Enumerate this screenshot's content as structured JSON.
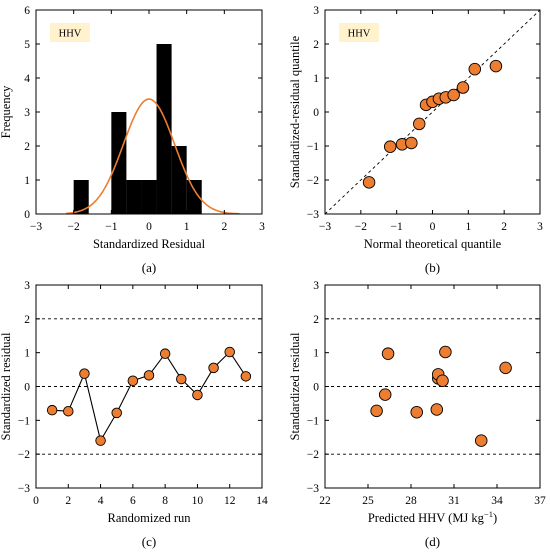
{
  "colors": {
    "marker_fill": "#ED7D31",
    "curve": "#ED7D31",
    "bar": "#000000",
    "badge_bg": "#FFF2CC",
    "axis": "#000000",
    "reference_line": "#000000"
  },
  "chart_data": [
    {
      "id": "a",
      "type": "bar",
      "panel_label": "(a)",
      "badge": "HHV",
      "xlabel": "Standardized Residual",
      "ylabel": "Frequency",
      "xlim": [
        -3,
        3
      ],
      "ylim": [
        0,
        6
      ],
      "xticks": [
        -3,
        -2,
        -1,
        0,
        1,
        2,
        3
      ],
      "yticks": [
        0,
        1,
        2,
        3,
        4,
        5,
        6
      ],
      "bin_width": 0.4,
      "bins": [
        {
          "center": -1.8,
          "value": 1
        },
        {
          "center": -0.8,
          "value": 3
        },
        {
          "center": -0.4,
          "value": 1
        },
        {
          "center": 0.0,
          "value": 1
        },
        {
          "center": 0.4,
          "value": 5
        },
        {
          "center": 0.8,
          "value": 2
        },
        {
          "center": 1.2,
          "value": 1
        }
      ],
      "overlay_curve": {
        "kind": "normal-density-scaled",
        "mean": 0.0,
        "sd": 0.68,
        "peak": 3.38,
        "range": [
          -2.2,
          2.4
        ]
      },
      "grid": false
    },
    {
      "id": "b",
      "type": "scatter",
      "panel_label": "(b)",
      "badge": "HHV",
      "xlabel": "Normal theoretical quantile",
      "ylabel": "Standardized-residual quantile",
      "xlim": [
        -3,
        3
      ],
      "ylim": [
        -3,
        3
      ],
      "xticks": [
        -3,
        -2,
        -1,
        0,
        1,
        2,
        3
      ],
      "yticks": [
        -3,
        -2,
        -1,
        0,
        1,
        2,
        3
      ],
      "points": [
        {
          "x": -1.77,
          "y": -2.07
        },
        {
          "x": -1.18,
          "y": -1.02
        },
        {
          "x": -0.85,
          "y": -0.95
        },
        {
          "x": -0.59,
          "y": -0.91
        },
        {
          "x": -0.37,
          "y": -0.35
        },
        {
          "x": -0.18,
          "y": 0.21
        },
        {
          "x": 0.0,
          "y": 0.3
        },
        {
          "x": 0.18,
          "y": 0.39
        },
        {
          "x": 0.37,
          "y": 0.43
        },
        {
          "x": 0.59,
          "y": 0.5
        },
        {
          "x": 0.85,
          "y": 0.72
        },
        {
          "x": 1.18,
          "y": 1.26
        },
        {
          "x": 1.77,
          "y": 1.35
        }
      ],
      "reference_line": {
        "style": "dashed",
        "from": [
          -3,
          -3
        ],
        "to": [
          3,
          3
        ]
      },
      "grid": false
    },
    {
      "id": "c",
      "type": "line",
      "panel_label": "(c)",
      "xlabel": "Randomized run",
      "ylabel": "Standardized residual",
      "xlim": [
        0,
        14
      ],
      "ylim": [
        -3,
        3
      ],
      "xticks": [
        0,
        2,
        4,
        6,
        8,
        10,
        12,
        14
      ],
      "yticks": [
        -3,
        -2,
        -1,
        0,
        1,
        2,
        3
      ],
      "x": [
        1,
        2,
        3,
        4,
        5,
        6,
        7,
        8,
        9,
        10,
        11,
        12,
        13
      ],
      "y": [
        -0.7,
        -0.73,
        0.38,
        -1.6,
        -0.78,
        0.17,
        0.33,
        0.97,
        0.22,
        -0.25,
        0.55,
        1.02,
        0.3
      ],
      "reference_lines_y": [
        -2,
        0,
        2
      ],
      "grid": false
    },
    {
      "id": "d",
      "type": "scatter",
      "panel_label": "(d)",
      "xlabel": "Predicted HHV (MJ kg",
      "xlabel_superscript": "−1",
      "xlabel_suffix": ")",
      "ylabel": "Standardized residual",
      "xlim": [
        22,
        37
      ],
      "ylim": [
        -3,
        3
      ],
      "xticks": [
        22,
        25,
        28,
        31,
        34,
        37
      ],
      "yticks": [
        -3,
        -2,
        -1,
        0,
        1,
        2,
        3
      ],
      "points": [
        {
          "x": 25.6,
          "y": -0.72
        },
        {
          "x": 26.2,
          "y": -0.24
        },
        {
          "x": 26.4,
          "y": 0.97
        },
        {
          "x": 28.4,
          "y": -0.76
        },
        {
          "x": 29.8,
          "y": -0.68
        },
        {
          "x": 29.9,
          "y": 0.24
        },
        {
          "x": 29.9,
          "y": 0.36
        },
        {
          "x": 30.2,
          "y": 0.17
        },
        {
          "x": 30.4,
          "y": 1.02
        },
        {
          "x": 32.9,
          "y": -1.6
        },
        {
          "x": 34.6,
          "y": 0.55
        }
      ],
      "reference_lines_y": [
        -2,
        0,
        2
      ],
      "grid": false
    }
  ]
}
